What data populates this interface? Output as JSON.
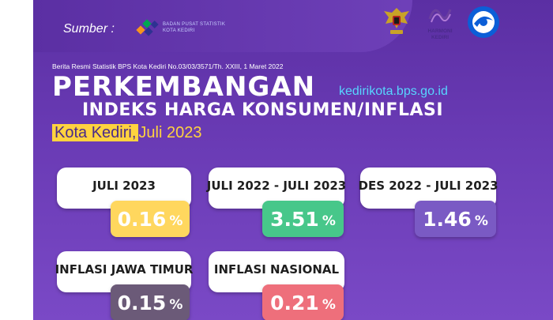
{
  "header": {
    "source_label": "Sumber :",
    "agency_name_line1": "BADAN PUSAT STATISTIK",
    "agency_name_line2": "KOTA KEDIRI",
    "logo_harmoni_line1": "HARMONI",
    "logo_harmoni_line2": "KEDIRI"
  },
  "release_line": "Berita Resmi Statistik BPS Kota Kediri No.03/03/3571/Th. XXIII, 1 Maret 2022",
  "title": {
    "line1": "PERKEMBANGAN",
    "url": "kedirikota.bps.go.id",
    "line2": "INDEKS HARGA KONSUMEN/INFLASI",
    "city": "Kota Kediri,",
    "period": "Juli 2023"
  },
  "cards": [
    {
      "label": "JULI 2023",
      "value": "0.16",
      "unit": "%",
      "color": "#ffd75e",
      "text_color": "#ffffff"
    },
    {
      "label": "JULI 2022 - JULI 2023",
      "value": "3.51",
      "unit": "%",
      "color": "#47c78a",
      "text_color": "#ffffff"
    },
    {
      "label": "DES 2022 - JULI 2023",
      "value": "1.46",
      "unit": "%",
      "color": "#7a5ac4",
      "text_color": "#ffffff"
    },
    {
      "label": "INFLASI JAWA TIMUR",
      "value": "0.15",
      "unit": "%",
      "color": "#6b5a78",
      "text_color": "#ffffff"
    },
    {
      "label": "INFLASI NASIONAL",
      "value": "0.21",
      "unit": "%",
      "color": "#ee6f7b",
      "text_color": "#ffffff"
    }
  ]
}
